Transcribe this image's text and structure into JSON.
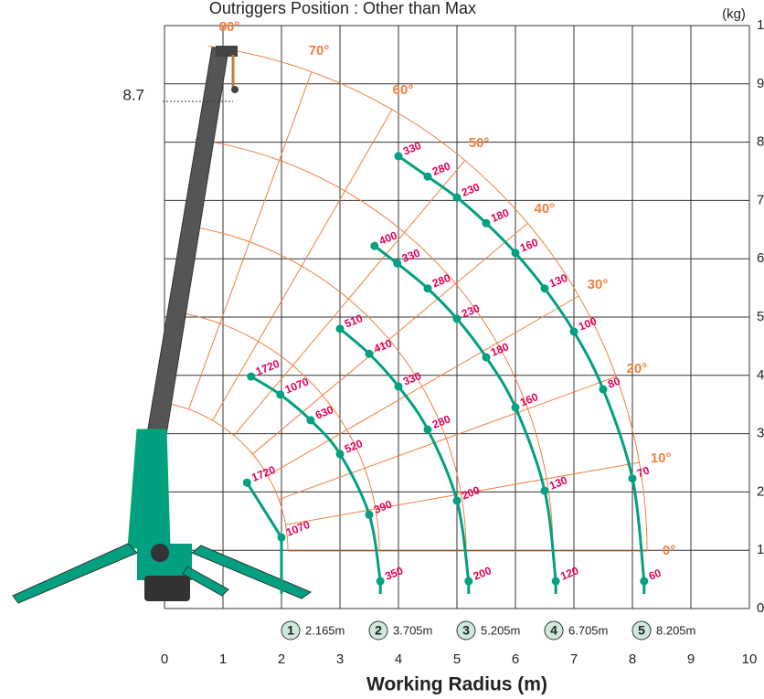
{
  "chart_data": {
    "type": "scatter",
    "title": "Outriggers Position : Other than Max",
    "unit_label": "(kg)",
    "xlabel": "Working Radius (m)",
    "xlim": [
      0,
      10
    ],
    "ylim": [
      0,
      10
    ],
    "xticks": [
      0,
      1,
      2,
      3,
      4,
      5,
      6,
      7,
      8,
      9,
      10
    ],
    "yticks": [
      0,
      1,
      2,
      3,
      4,
      5,
      6,
      7,
      8,
      9,
      10
    ],
    "grid": true,
    "annotation": 8.7,
    "angle_lines": [
      {
        "value": 0,
        "label": "0°"
      },
      {
        "value": 10,
        "label": "10°"
      },
      {
        "value": 20,
        "label": "20°"
      },
      {
        "value": 30,
        "label": "30°"
      },
      {
        "value": 40,
        "label": "40°"
      },
      {
        "value": 50,
        "label": "50°"
      },
      {
        "value": 60,
        "label": "60°"
      },
      {
        "value": 70,
        "label": "70°"
      },
      {
        "value": 80,
        "label": "80°"
      }
    ],
    "series": [
      {
        "name": "1",
        "radius_label": "2.165m",
        "color": "#00a080",
        "x": [
          1.41,
          2.0
        ],
        "y": [
          2.16,
          1.22
        ],
        "loads": [
          1720,
          1070
        ]
      },
      {
        "name": "2",
        "radius_label": "3.705m",
        "color": "#00a080",
        "x": [
          1.48,
          1.98,
          2.5,
          3.0,
          3.5,
          3.69
        ],
        "y": [
          3.98,
          3.67,
          3.23,
          2.65,
          1.61,
          0.47
        ],
        "loads": [
          1720,
          1070,
          630,
          520,
          390,
          350
        ]
      },
      {
        "name": "3",
        "radius_label": "5.205m",
        "color": "#00a080",
        "x": [
          3.0,
          3.5,
          4.0,
          4.5,
          5.0,
          5.2
        ],
        "y": [
          4.8,
          4.37,
          3.81,
          3.07,
          1.85,
          0.47
        ],
        "loads": [
          510,
          410,
          330,
          280,
          200,
          200
        ]
      },
      {
        "name": "4",
        "radius_label": "6.705m",
        "color": "#00a080",
        "x": [
          3.59,
          3.98,
          4.5,
          5.0,
          5.5,
          6.0,
          6.5,
          6.69
        ],
        "y": [
          6.22,
          5.92,
          5.49,
          4.97,
          4.31,
          3.45,
          2.02,
          0.47
        ],
        "loads": [
          400,
          330,
          280,
          230,
          180,
          160,
          130,
          120
        ]
      },
      {
        "name": "5",
        "radius_label": "8.205m",
        "color": "#00a080",
        "x": [
          4.0,
          4.5,
          5.0,
          5.5,
          6.0,
          6.5,
          7.0,
          7.5,
          8.0,
          8.2
        ],
        "y": [
          7.76,
          7.41,
          7.05,
          6.61,
          6.1,
          5.49,
          4.75,
          3.76,
          2.23,
          0.47
        ],
        "loads": [
          330,
          280,
          230,
          180,
          160,
          130,
          100,
          80,
          70,
          60
        ]
      }
    ]
  }
}
